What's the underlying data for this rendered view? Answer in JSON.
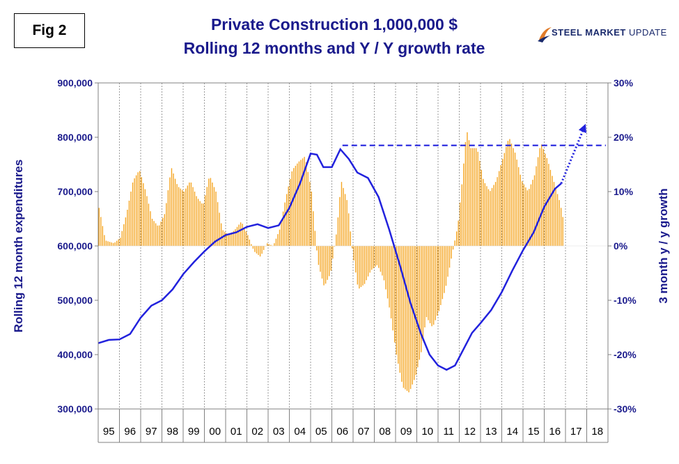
{
  "figure_label": "Fig 2",
  "title_line1": "Private Construction 1,000,000 $",
  "title_line2": "Rolling 12 months and Y / Y growth rate",
  "logo": {
    "text_bold": "STEEL MARKET",
    "text_light": " UPDATE",
    "icon": "swoosh-logo-icon",
    "colors": [
      "#e07b2a",
      "#1a2a6c"
    ]
  },
  "colors": {
    "line": "#2222dd",
    "bars": "#f5a623",
    "axis_text": "#1a1a8c",
    "trend": "#2222dd"
  },
  "chart_data": {
    "type": "bar+line",
    "ylabel_left": "Rolling 12 month expenditures",
    "ylabel_right": "3 month y / y growth",
    "y_left": {
      "min": 300000,
      "max": 900000,
      "ticks": [
        "300,000",
        "400,000",
        "500,000",
        "600,000",
        "700,000",
        "800,000",
        "900,000"
      ]
    },
    "y_right": {
      "min": -30,
      "max": 30,
      "ticks": [
        "-30%",
        "-20%",
        "-10%",
        "0%",
        "10%",
        "20%",
        "30%"
      ]
    },
    "x_categories": [
      "95",
      "96",
      "97",
      "98",
      "99",
      "00",
      "01",
      "02",
      "03",
      "04",
      "05",
      "06",
      "07",
      "08",
      "09",
      "10",
      "11",
      "12",
      "13",
      "14",
      "15",
      "16",
      "17",
      "18"
    ],
    "line_series": {
      "name": "Rolling 12 month expenditures",
      "points": [
        [
          1995.0,
          421000
        ],
        [
          1995.5,
          427000
        ],
        [
          1996.0,
          428000
        ],
        [
          1996.5,
          438000
        ],
        [
          1997.0,
          468000
        ],
        [
          1997.5,
          490000
        ],
        [
          1998.0,
          500000
        ],
        [
          1998.5,
          520000
        ],
        [
          1999.0,
          548000
        ],
        [
          1999.5,
          570000
        ],
        [
          2000.0,
          590000
        ],
        [
          2000.5,
          608000
        ],
        [
          2001.0,
          620000
        ],
        [
          2001.5,
          625000
        ],
        [
          2002.0,
          635000
        ],
        [
          2002.5,
          640000
        ],
        [
          2003.0,
          633000
        ],
        [
          2003.5,
          638000
        ],
        [
          2004.0,
          670000
        ],
        [
          2004.5,
          715000
        ],
        [
          2005.0,
          770000
        ],
        [
          2005.3,
          768000
        ],
        [
          2005.6,
          745000
        ],
        [
          2006.0,
          745000
        ],
        [
          2006.4,
          778000
        ],
        [
          2006.8,
          760000
        ],
        [
          2007.2,
          735000
        ],
        [
          2007.7,
          725000
        ],
        [
          2008.2,
          690000
        ],
        [
          2008.7,
          630000
        ],
        [
          2009.2,
          565000
        ],
        [
          2009.7,
          495000
        ],
        [
          2010.2,
          438000
        ],
        [
          2010.6,
          400000
        ],
        [
          2011.0,
          380000
        ],
        [
          2011.4,
          372000
        ],
        [
          2011.8,
          380000
        ],
        [
          2012.2,
          410000
        ],
        [
          2012.6,
          440000
        ],
        [
          2013.0,
          458000
        ],
        [
          2013.5,
          482000
        ],
        [
          2014.0,
          515000
        ],
        [
          2014.5,
          555000
        ],
        [
          2015.0,
          592000
        ],
        [
          2015.5,
          625000
        ],
        [
          2016.0,
          672000
        ],
        [
          2016.5,
          705000
        ],
        [
          2016.8,
          715000
        ]
      ]
    },
    "bar_series": {
      "name": "3 month y / y growth",
      "points": [
        [
          1995.0,
          7
        ],
        [
          1995.3,
          1
        ],
        [
          1995.7,
          0.5
        ],
        [
          1996.0,
          1.5
        ],
        [
          1996.3,
          6
        ],
        [
          1996.6,
          12
        ],
        [
          1996.9,
          14
        ],
        [
          1997.2,
          10
        ],
        [
          1997.5,
          5
        ],
        [
          1997.8,
          3.5
        ],
        [
          1998.1,
          6
        ],
        [
          1998.4,
          14.5
        ],
        [
          1998.7,
          11
        ],
        [
          1999.0,
          10
        ],
        [
          1999.3,
          12
        ],
        [
          1999.6,
          9
        ],
        [
          1999.9,
          7.5
        ],
        [
          2000.2,
          13
        ],
        [
          2000.5,
          10
        ],
        [
          2000.8,
          3
        ],
        [
          2001.1,
          2
        ],
        [
          2001.4,
          3
        ],
        [
          2001.7,
          4.5
        ],
        [
          2002.0,
          2
        ],
        [
          2002.3,
          -1
        ],
        [
          2002.6,
          -2
        ],
        [
          2002.9,
          0.5
        ],
        [
          2003.2,
          0
        ],
        [
          2003.5,
          3
        ],
        [
          2003.8,
          9
        ],
        [
          2004.1,
          14
        ],
        [
          2004.4,
          15.5
        ],
        [
          2004.7,
          16.5
        ],
        [
          2005.0,
          10
        ],
        [
          2005.3,
          -3
        ],
        [
          2005.6,
          -7.5
        ],
        [
          2005.9,
          -5
        ],
        [
          2006.2,
          3
        ],
        [
          2006.4,
          12
        ],
        [
          2006.7,
          8
        ],
        [
          2006.9,
          0
        ],
        [
          2007.2,
          -8
        ],
        [
          2007.5,
          -7
        ],
        [
          2007.8,
          -4.5
        ],
        [
          2008.1,
          -3.5
        ],
        [
          2008.4,
          -6
        ],
        [
          2008.7,
          -12
        ],
        [
          2009.0,
          -20
        ],
        [
          2009.3,
          -26
        ],
        [
          2009.6,
          -27
        ],
        [
          2009.9,
          -24
        ],
        [
          2010.2,
          -19
        ],
        [
          2010.4,
          -13
        ],
        [
          2010.7,
          -15
        ],
        [
          2011.0,
          -12
        ],
        [
          2011.3,
          -8
        ],
        [
          2011.6,
          -2
        ],
        [
          2011.9,
          4
        ],
        [
          2012.1,
          12
        ],
        [
          2012.3,
          21.5
        ],
        [
          2012.5,
          18
        ],
        [
          2012.8,
          18
        ],
        [
          2013.1,
          12
        ],
        [
          2013.4,
          10
        ],
        [
          2013.7,
          12
        ],
        [
          2014.0,
          16
        ],
        [
          2014.3,
          20
        ],
        [
          2014.6,
          17
        ],
        [
          2014.9,
          12
        ],
        [
          2015.2,
          10
        ],
        [
          2015.5,
          13
        ],
        [
          2015.8,
          19
        ],
        [
          2016.1,
          16
        ],
        [
          2016.4,
          12
        ],
        [
          2016.7,
          8
        ],
        [
          2016.9,
          4
        ]
      ]
    },
    "reference_line": {
      "y": 785000,
      "x_start": 2006.5,
      "x_end": 2018.9,
      "style": "dashed"
    },
    "trend_arrow": {
      "from": [
        2016.8,
        715000
      ],
      "to": [
        2017.9,
        820000
      ],
      "style": "dotted"
    },
    "grid": {
      "x": true,
      "y": false
    }
  }
}
